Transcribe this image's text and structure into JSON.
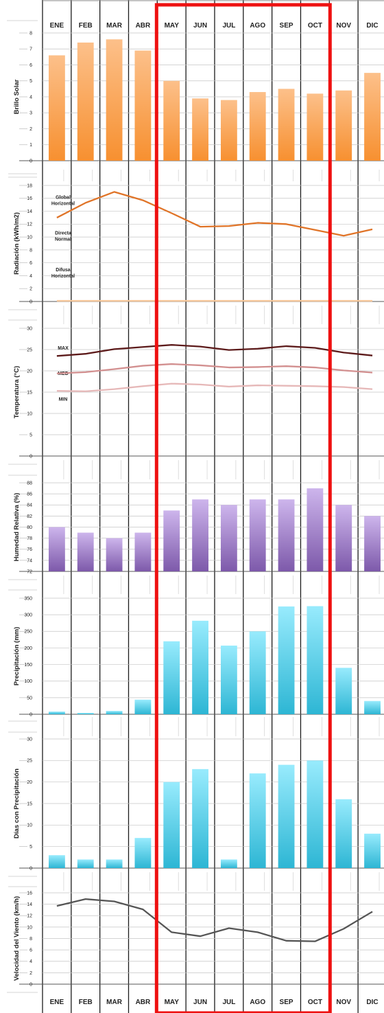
{
  "chart_data": {
    "type": "bar",
    "months": [
      "ENE",
      "FEB",
      "MAR",
      "ABR",
      "MAY",
      "JUN",
      "JUL",
      "AGO",
      "SEP",
      "OCT",
      "NOV",
      "DIC"
    ],
    "highlight": {
      "from": "MAY",
      "to": "OCT",
      "color": "#ee1111"
    },
    "panels": [
      {
        "type": "bar",
        "ylabel": "Brillo Solar",
        "ylim": [
          0,
          8
        ],
        "ticks": [
          "0",
          "1",
          "2",
          "3",
          "4",
          "5",
          "6",
          "7",
          "8"
        ],
        "colors": {
          "top": "#fcc08a",
          "bottom": "#f79030"
        },
        "values": [
          6.6,
          7.4,
          7.6,
          6.9,
          5.0,
          3.9,
          3.8,
          4.3,
          4.5,
          4.2,
          4.4,
          5.5
        ]
      },
      {
        "type": "line",
        "ylabel": "Radiación (kWh/m2)",
        "ylim": [
          0,
          18
        ],
        "ticks": [
          "0",
          "2",
          "4",
          "6",
          "8",
          "10",
          "12",
          "14",
          "16",
          "18"
        ],
        "annotations": [
          {
            "lines": [
              "Global",
              "Horizontal"
            ],
            "y": 15.9
          },
          {
            "lines": [
              "Directa",
              "Normal"
            ],
            "y": 10.4
          },
          {
            "lines": [
              "Difusa",
              "Horizontal"
            ],
            "y": 4.7
          }
        ],
        "series": [
          {
            "color": "#e07428",
            "values": [
              13.0,
              15.3,
              17.0,
              15.7,
              13.7,
              11.6,
              11.7,
              12.2,
              12.0,
              11.1,
              10.2,
              11.2
            ]
          },
          {
            "color": "#f5c79a",
            "values": [
              0.1,
              0.1,
              0.1,
              0.1,
              0.1,
              0.1,
              0.1,
              0.1,
              0.1,
              0.1,
              0.1,
              0.1
            ]
          }
        ]
      },
      {
        "type": "line",
        "ylabel": "Temperatura (°C)",
        "ylim": [
          0,
          30
        ],
        "ticks": [
          "0",
          "5",
          "10",
          "15",
          "20",
          "25",
          "30"
        ],
        "annotations": [
          {
            "lines": [
              "MAX"
            ],
            "y": 25.0
          },
          {
            "lines": [
              "MED"
            ],
            "y": 19.0
          },
          {
            "lines": [
              "MIN"
            ],
            "y": 13.0
          }
        ],
        "series": [
          {
            "color": "#5c1a1a",
            "values": [
              23.5,
              24.0,
              25.1,
              25.6,
              26.1,
              25.7,
              24.9,
              25.2,
              25.8,
              25.4,
              24.3,
              23.6
            ]
          },
          {
            "color": "#d28f8f",
            "values": [
              19.4,
              19.7,
              20.4,
              21.2,
              21.6,
              21.3,
              20.8,
              20.9,
              21.1,
              20.8,
              20.1,
              19.6
            ]
          },
          {
            "color": "#e6b8b8",
            "values": [
              15.3,
              15.2,
              15.7,
              16.4,
              17.0,
              16.8,
              16.3,
              16.6,
              16.5,
              16.4,
              16.2,
              15.7
            ]
          }
        ]
      },
      {
        "type": "bar",
        "ylabel": "Humedad Relativa (%)",
        "ylim": [
          72,
          88
        ],
        "ticks": [
          "72",
          "74",
          "76",
          "78",
          "80",
          "82",
          "84",
          "86",
          "88"
        ],
        "colors": {
          "top": "#cdb5ec",
          "bottom": "#7d59aa"
        },
        "values": [
          80,
          79,
          78,
          79,
          83,
          85,
          84,
          85,
          85,
          87,
          84,
          82
        ]
      },
      {
        "type": "bar",
        "ylabel": "Precipitación (mm)",
        "ylim": [
          0,
          350
        ],
        "ticks": [
          "0",
          "50",
          "100",
          "150",
          "200",
          "250",
          "300",
          "350"
        ],
        "colors": {
          "top": "#98ebfd",
          "bottom": "#2db6d4"
        },
        "values": [
          8,
          4,
          10,
          44,
          220,
          282,
          207,
          250,
          325,
          326,
          140,
          40
        ]
      },
      {
        "type": "bar",
        "ylabel": "Días con Precipitación",
        "ylim": [
          0,
          30
        ],
        "ticks": [
          "0",
          "5",
          "10",
          "15",
          "20",
          "25",
          "30"
        ],
        "colors": {
          "top": "#98ebfd",
          "bottom": "#2db6d4"
        },
        "values": [
          3,
          2,
          2,
          7,
          20,
          23,
          2,
          22,
          24,
          25,
          16,
          8
        ]
      },
      {
        "type": "line",
        "ylabel": "Velocidad del Viento (km/h)",
        "ylim": [
          0,
          16
        ],
        "ticks": [
          "0",
          "2",
          "4",
          "6",
          "8",
          "10",
          "12",
          "14",
          "16"
        ],
        "series": [
          {
            "color": "#555555",
            "values": [
              13.7,
              14.9,
              14.5,
              13.1,
              9.1,
              8.4,
              9.8,
              9.1,
              7.6,
              7.5,
              9.7,
              12.7
            ]
          }
        ]
      }
    ]
  }
}
